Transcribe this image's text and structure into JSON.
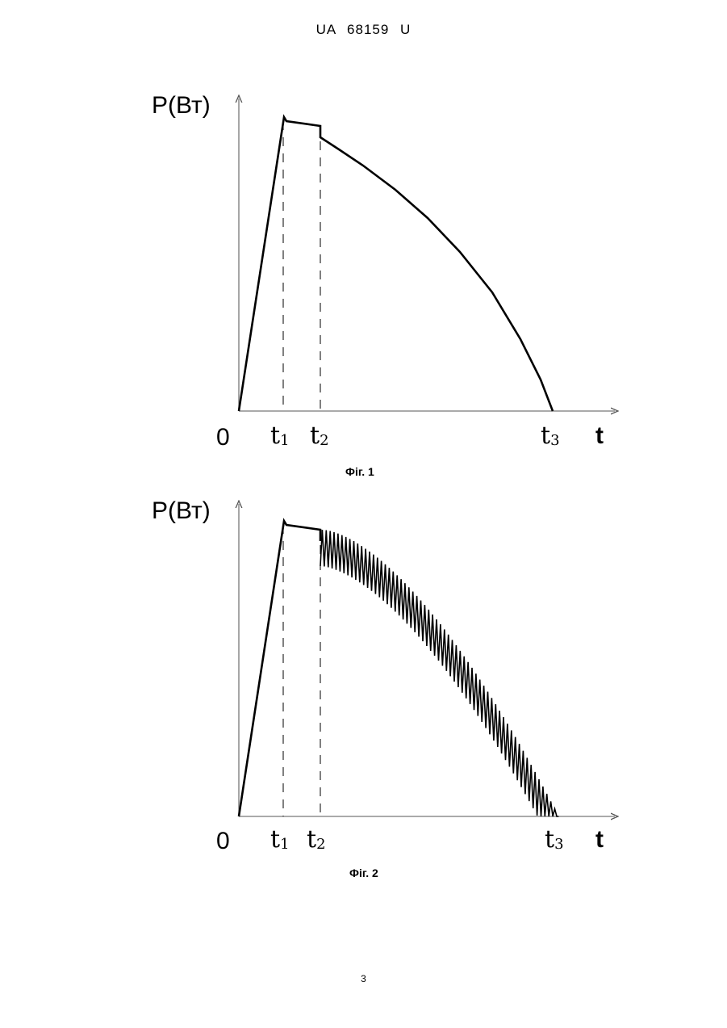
{
  "header": {
    "doc_id": "UA   68159   U"
  },
  "figures": [
    {
      "y_axis_label": "P(Вт)",
      "origin_label": "0",
      "x_axis_label": "t",
      "ticks": [
        {
          "base": "t",
          "sub": "1"
        },
        {
          "base": "t",
          "sub": "2"
        },
        {
          "base": "t",
          "sub": "3"
        }
      ],
      "caption": "Фіг. 1"
    },
    {
      "y_axis_label": "P(Вт)",
      "origin_label": "0",
      "x_axis_label": "t",
      "ticks": [
        {
          "base": "t",
          "sub": "1"
        },
        {
          "base": "t",
          "sub": "2"
        },
        {
          "base": "t",
          "sub": "3"
        }
      ],
      "caption": "Фіг. 2"
    }
  ],
  "page_number": "3"
}
